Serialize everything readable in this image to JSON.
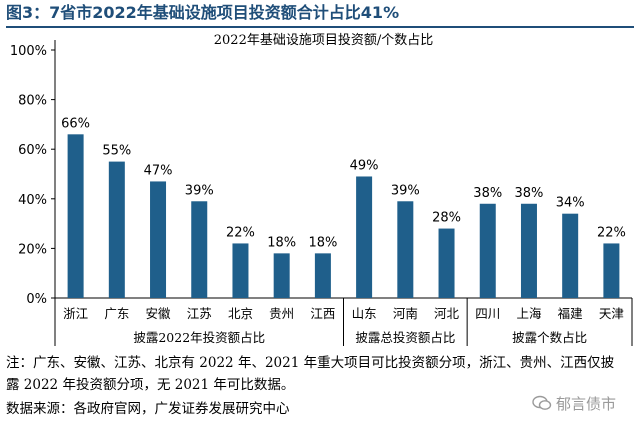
{
  "figure": {
    "title": "图3：7省市2022年基础设施项目投资额合计占比41%",
    "note": "注：广东、安徽、江苏、北京有 2022 年、2021 年重大项目可比投资额分项，浙江、贵州、江西仅披露 2022 年投资额分项，无 2021 年可比数据。",
    "source": "数据来源：各政府官网，广发证券发展研究中心",
    "watermark": "郁言债市"
  },
  "chart_data": {
    "type": "bar",
    "title": "2022年基础设施项目投资额/个数占比",
    "categories": [
      "浙江",
      "广东",
      "安徽",
      "江苏",
      "北京",
      "贵州",
      "江西",
      "山东",
      "河南",
      "河北",
      "四川",
      "上海",
      "福建",
      "天津"
    ],
    "values": [
      66,
      55,
      47,
      39,
      22,
      18,
      18,
      49,
      39,
      28,
      38,
      38,
      34,
      22
    ],
    "data_labels": [
      "66%",
      "55%",
      "47%",
      "39%",
      "22%",
      "18%",
      "18%",
      "49%",
      "39%",
      "28%",
      "38%",
      "38%",
      "34%",
      "22%"
    ],
    "groups": [
      {
        "label": "披露2022年投资额占比",
        "count": 7
      },
      {
        "label": "披露总投资额占比",
        "count": 3
      },
      {
        "label": "披露个数占比",
        "count": 4
      }
    ],
    "y_ticks": [
      "0%",
      "20%",
      "40%",
      "60%",
      "80%",
      "100%"
    ],
    "ylim": [
      0,
      100
    ],
    "bar_color": "#1f5f8b",
    "grid": false
  }
}
